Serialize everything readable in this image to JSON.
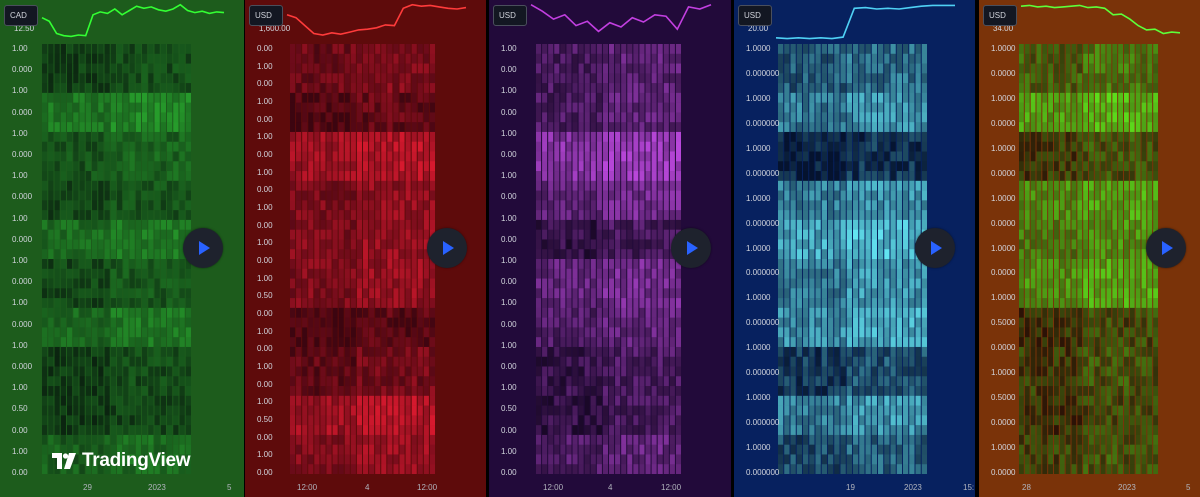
{
  "brand": {
    "name": "TradingView"
  },
  "colors": {
    "play_icon": "#2962ff",
    "play_bg": "#1e222d"
  },
  "panels": [
    {
      "id": "green",
      "bg": "#1d5c1c",
      "line_color": "#33ff33",
      "cell_low": "#0b2410",
      "cell_high": "#29a82e",
      "currency": "CAD",
      "top_tick": "12.50",
      "price": [
        0.62,
        0.52,
        0.18,
        0.12,
        0.1,
        0.14,
        0.12,
        0.7,
        0.78,
        0.74,
        0.86,
        0.7,
        0.82,
        0.94,
        0.88,
        0.92,
        0.84,
        0.8,
        0.86,
        0.98,
        0.82,
        0.76,
        0.8,
        0.74,
        0.78,
        0.76
      ],
      "scale_labels": [
        "1.00",
        "0.000",
        "1.00",
        "0.000",
        "1.00",
        "0.000",
        "1.00",
        "0.000",
        "1.00",
        "0.000",
        "1.00",
        "0.000",
        "1.00",
        "0.000",
        "1.00",
        "0.000",
        "1.00",
        "0.50",
        "0.00",
        "1.00",
        "0.00"
      ],
      "x_labels": [
        "29",
        "2023",
        "5"
      ],
      "show_logo": true
    },
    {
      "id": "red",
      "bg": "#5e0b0b",
      "line_color": "#ff3b3b",
      "cell_low": "#3c0510",
      "cell_high": "#ff1e36",
      "currency": "USD",
      "top_tick": "1,600.00",
      "price": [
        0.7,
        0.62,
        0.4,
        0.18,
        0.14,
        0.2,
        0.16,
        0.22,
        0.28,
        0.3,
        0.34,
        0.42,
        0.4,
        0.88,
        0.98,
        0.94,
        0.96,
        0.92,
        0.88,
        0.86,
        0.9
      ],
      "scale_labels": [
        "0.00",
        "1.00",
        "0.00",
        "1.00",
        "0.00",
        "1.00",
        "0.00",
        "1.00",
        "0.00",
        "1.00",
        "0.00",
        "1.00",
        "0.00",
        "1.00",
        "0.50",
        "0.00",
        "1.00",
        "0.00",
        "1.00",
        "0.00",
        "1.00",
        "0.50",
        "0.00",
        "1.00",
        "0.00"
      ],
      "x_labels": [
        "12:00",
        "4",
        "12:00"
      ],
      "show_logo": false
    },
    {
      "id": "purple",
      "bg": "#220a3a",
      "line_color": "#c23fe0",
      "cell_low": "#1a0828",
      "cell_high": "#c34be6",
      "currency": "USD",
      "top_tick": "",
      "price": [
        0.98,
        0.8,
        0.58,
        0.7,
        0.4,
        0.52,
        0.24,
        0.48,
        0.36,
        0.62,
        0.5,
        0.7,
        0.66,
        0.3,
        0.92,
        0.86,
        0.98
      ],
      "scale_labels": [
        "1.00",
        "0.00",
        "1.00",
        "0.00",
        "1.00",
        "0.00",
        "1.00",
        "0.00",
        "1.00",
        "0.00",
        "1.00",
        "0.00",
        "1.00",
        "0.00",
        "1.00",
        "0.00",
        "1.00",
        "0.50",
        "0.00",
        "1.00",
        "0.00"
      ],
      "x_labels": [
        "12:00",
        "4",
        "12:00"
      ],
      "show_logo": false
    },
    {
      "id": "blue",
      "bg": "#07215f",
      "line_color": "#4fd1f5",
      "cell_low": "#05132f",
      "cell_high": "#63e4f2",
      "currency": "USD",
      "top_tick": "20.00",
      "price": [
        0.06,
        0.04,
        0.06,
        0.04,
        0.06,
        0.04,
        0.08,
        0.88,
        0.9,
        0.86,
        0.88,
        0.86,
        0.9,
        0.94,
        0.96,
        0.96,
        0.96
      ],
      "scale_labels": [
        "1.0000",
        "0.000000",
        "1.0000",
        "0.000000",
        "1.0000",
        "0.000000",
        "1.0000",
        "0.000000",
        "1.0000",
        "0.000000",
        "1.0000",
        "0.000000",
        "1.0000",
        "0.000000",
        "1.0000",
        "0.000000",
        "1.0000",
        "0.000000"
      ],
      "x_labels": [
        "19",
        "2023",
        "15:"
      ],
      "show_logo": false
    },
    {
      "id": "orange",
      "bg": "#7a3309",
      "line_color": "#5dff3a",
      "cell_low": "#2c1206",
      "cell_high": "#5cdc1c",
      "currency": "USD",
      "top_tick": "34.00",
      "price": [
        0.94,
        0.96,
        0.92,
        0.94,
        0.9,
        0.92,
        0.94,
        0.96,
        0.9,
        0.92,
        0.88,
        0.7,
        0.72,
        0.58,
        0.4,
        0.28,
        0.3,
        0.18,
        0.22,
        0.2
      ],
      "scale_labels": [
        "1.0000",
        "0.0000",
        "1.0000",
        "0.0000",
        "1.0000",
        "0.0000",
        "1.0000",
        "0.0000",
        "1.0000",
        "0.0000",
        "1.0000",
        "0.5000",
        "0.0000",
        "1.0000",
        "0.5000",
        "0.0000",
        "1.0000",
        "0.0000"
      ],
      "x_labels": [
        "28",
        "2023",
        "5"
      ],
      "show_logo": false
    }
  ]
}
